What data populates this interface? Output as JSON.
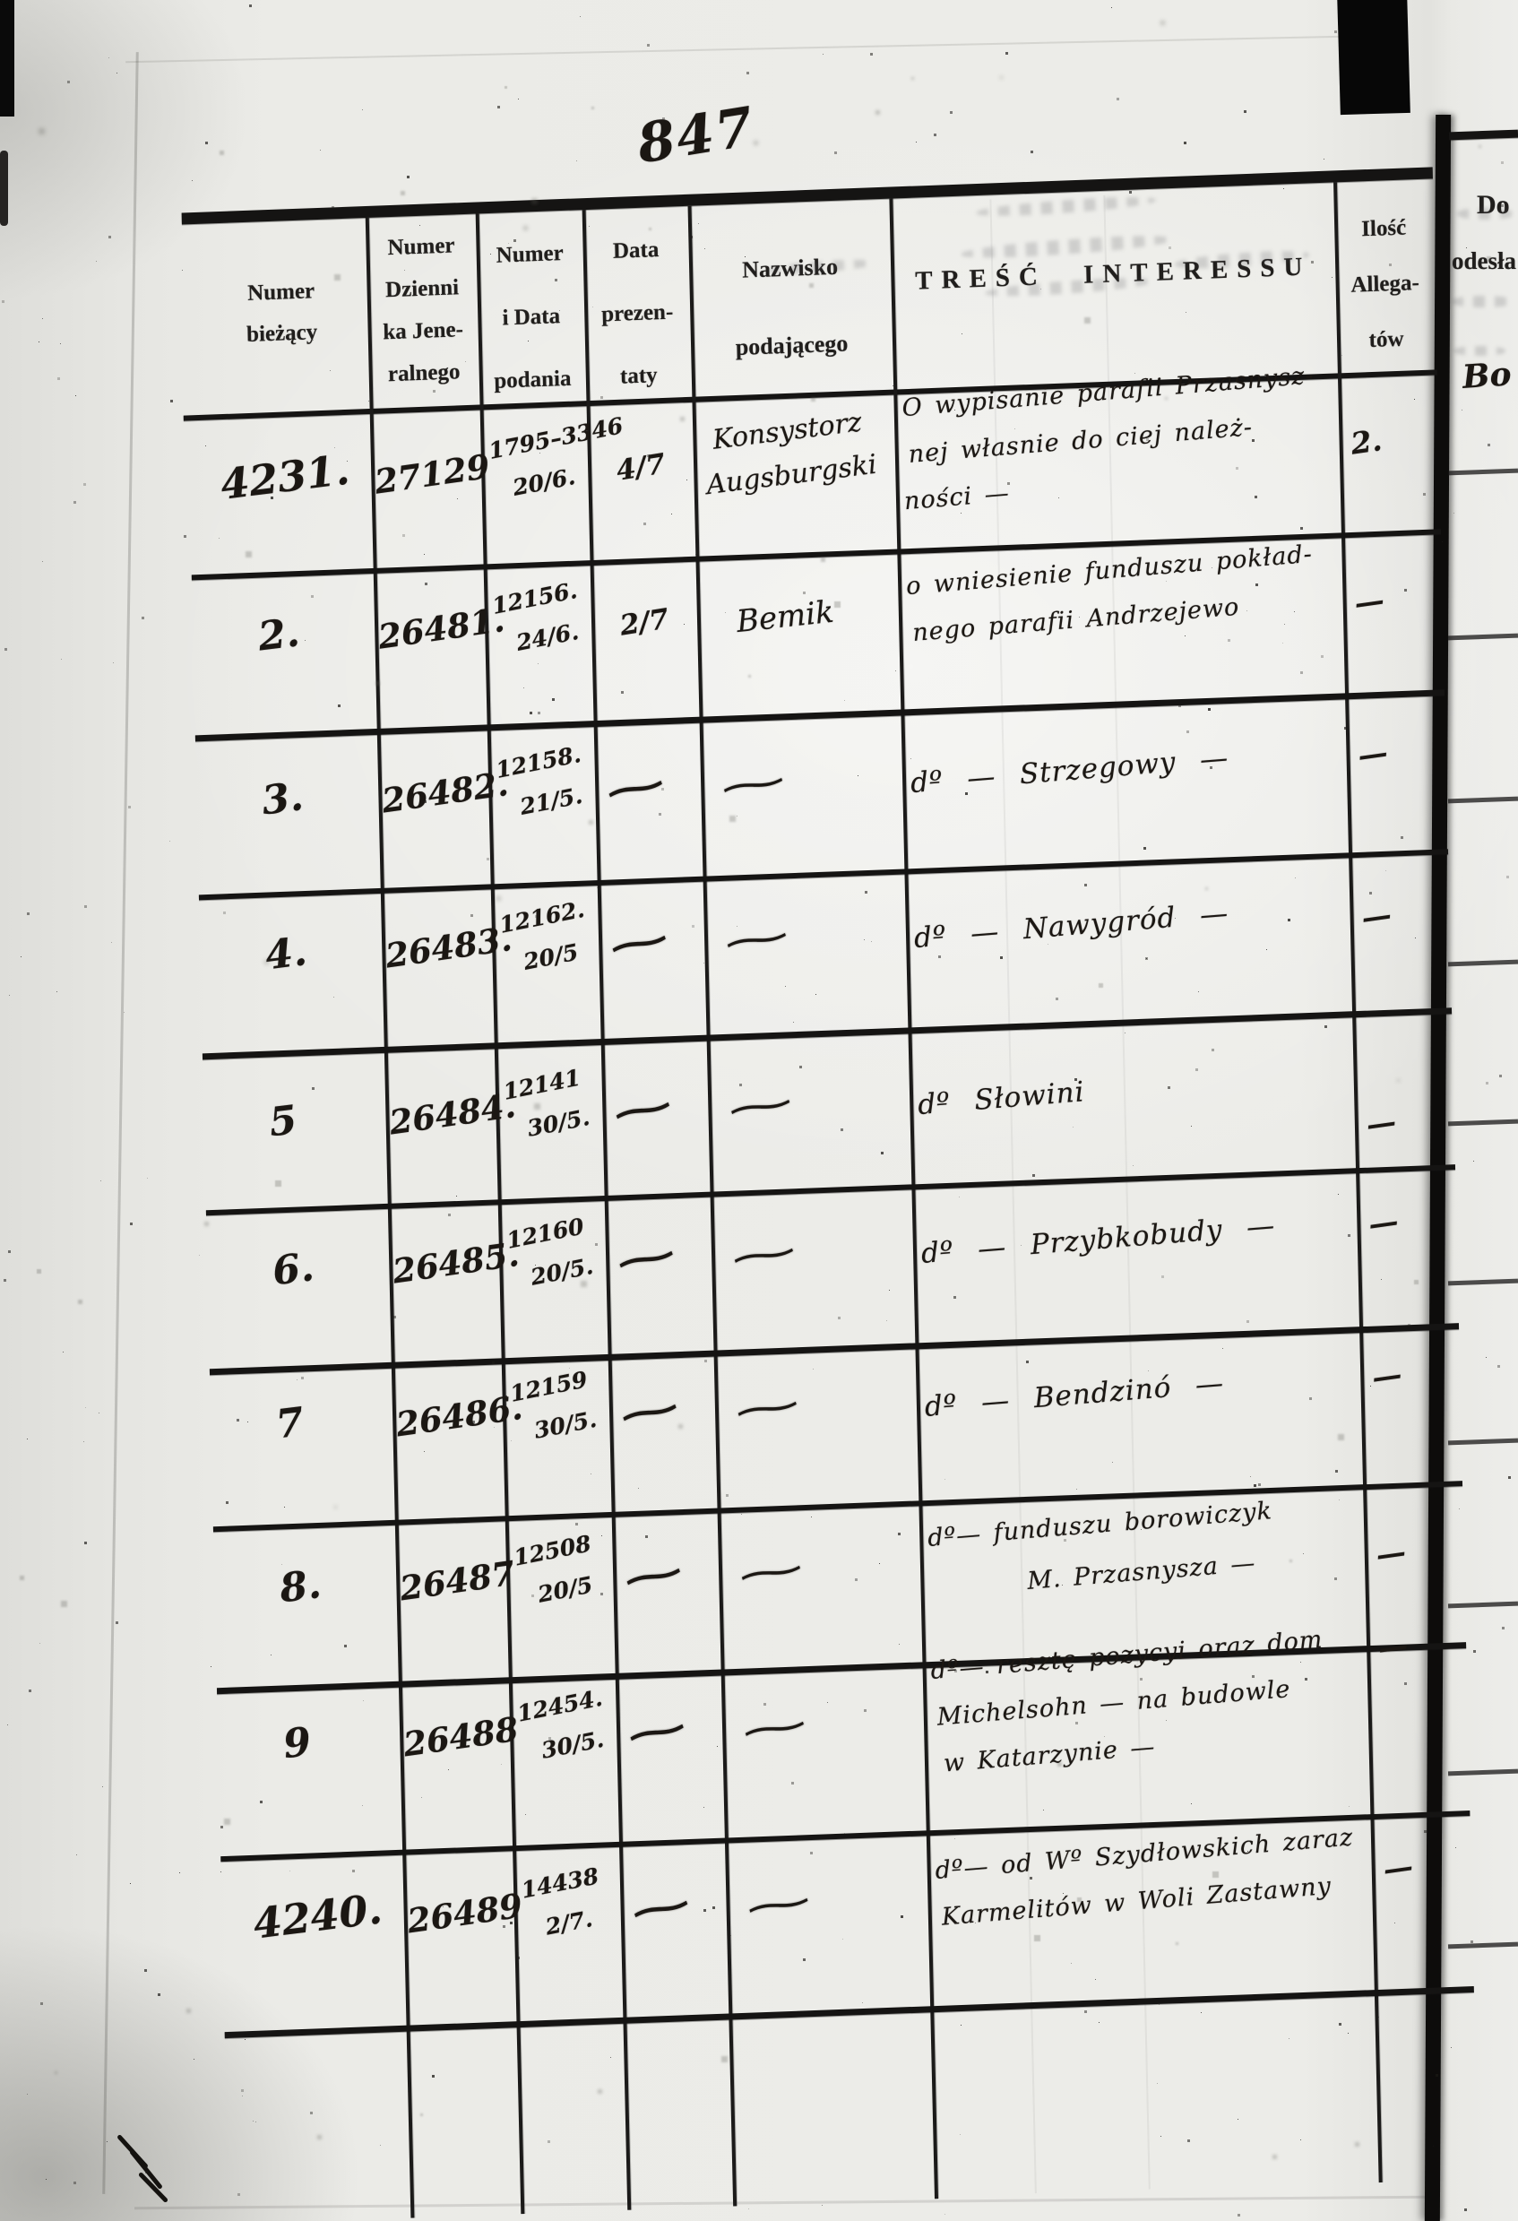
{
  "page": {
    "handwritten_page_number": "847",
    "paper_color": "#ecece8",
    "ink_color": "#1b1713",
    "print_color": "#201e1c"
  },
  "marks": {
    "ditto": "~",
    "dash": "—"
  },
  "table": {
    "columns": [
      {
        "id": "numer-biezacy",
        "label_lines": [
          "Numer",
          "bieżący"
        ]
      },
      {
        "id": "numer-dziennika",
        "label_lines": [
          "Numer",
          "Dzienni",
          "ka Jene-",
          "ralnego"
        ]
      },
      {
        "id": "numer-podania",
        "label_lines": [
          "Numer",
          "i Data",
          "podania"
        ]
      },
      {
        "id": "data-prezentaty",
        "label_lines": [
          "Data",
          "prezen-",
          "taty"
        ]
      },
      {
        "id": "nazwisko",
        "label_lines": [
          "Nazwisko",
          "podającego"
        ]
      },
      {
        "id": "tresc",
        "label_lines": [
          "TREŚĆ INTERESSU"
        ]
      },
      {
        "id": "ilosc",
        "label_lines": [
          "Ilość",
          "Allega-",
          "tów"
        ]
      }
    ],
    "rows": [
      {
        "numer_biezacy": "4231.",
        "numer_dziennika": "27129",
        "numer_podania": [
          "1795–3346",
          "20/6."
        ],
        "data_prezentaty": "4/7",
        "nazwisko": [
          "Konsystorz",
          "Augsburgski"
        ],
        "tresc": [
          "O wypisanie parafii Przasnysz-",
          "nej własnie do ciej należ-",
          "ności —"
        ],
        "ilosc": "2."
      },
      {
        "numer_biezacy": "2.",
        "numer_dziennika": "26481.",
        "numer_podania": [
          "12156.",
          "24/6."
        ],
        "data_prezentaty": "2/7",
        "nazwisko": [
          "Bemik"
        ],
        "tresc": [
          "o wniesienie funduszu pokład-",
          "nego parafii Andrzejewo"
        ],
        "ilosc": "—"
      },
      {
        "numer_biezacy": "3.",
        "numer_dziennika": "26482.",
        "numer_podania": [
          "12158.",
          "21/5."
        ],
        "data_prezentaty": "~",
        "nazwisko": [
          "~"
        ],
        "tresc": [
          "dº —   Strzegowy —"
        ],
        "ilosc": "—"
      },
      {
        "numer_biezacy": "4.",
        "numer_dziennika": "26483.",
        "numer_podania": [
          "12162.",
          "20/5"
        ],
        "data_prezentaty": "~",
        "nazwisko": [
          "~"
        ],
        "tresc": [
          "dº —   Nawygród   —"
        ],
        "ilosc": "—"
      },
      {
        "numer_biezacy": "5",
        "numer_dziennika": "26484.",
        "numer_podania": [
          "12141",
          "30/5."
        ],
        "data_prezentaty": "~",
        "nazwisko": [
          "~"
        ],
        "tresc": [
          "dº    Słowini"
        ],
        "ilosc": "—"
      },
      {
        "numer_biezacy": "6.",
        "numer_dziennika": "26485.",
        "numer_podania": [
          "12160",
          "20/5."
        ],
        "data_prezentaty": "~",
        "nazwisko": [
          "~"
        ],
        "tresc": [
          "dº —   Przybkobudy  —"
        ],
        "ilosc": "—"
      },
      {
        "numer_biezacy": "7",
        "numer_dziennika": "26486.",
        "numer_podania": [
          "12159",
          "30/5."
        ],
        "data_prezentaty": "~",
        "nazwisko": [
          "~"
        ],
        "tresc": [
          "dº —   Bendzinó —"
        ],
        "ilosc": "—"
      },
      {
        "numer_biezacy": "8.",
        "numer_dziennika": "26487",
        "numer_podania": [
          "12508",
          "20/5"
        ],
        "data_prezentaty": "~",
        "nazwisko": [
          "~"
        ],
        "tresc": [
          "dº—  funduszu borowiczyk",
          "M. Przasnysza —"
        ],
        "ilosc": "—"
      },
      {
        "numer_biezacy": "9",
        "numer_dziennika": "26488",
        "numer_podania": [
          "12454.",
          "30/5."
        ],
        "data_prezentaty": "~",
        "nazwisko": [
          "~"
        ],
        "tresc": [
          "dº— resztę pozycyi oraz dom",
          "Michelsohn — na budowle",
          "w Katarzynie —"
        ],
        "ilosc": "—"
      },
      {
        "numer_biezacy": "4240.",
        "numer_dziennika": "26489",
        "numer_podania": [
          "14438",
          "2/7."
        ],
        "data_prezentaty": "~",
        "nazwisko": [
          "~"
        ],
        "tresc": [
          "dº— od Wº Szydłowskich zaraz",
          "Karmelitów w Woli Zastawny"
        ],
        "ilosc": "—"
      }
    ]
  },
  "right_page": {
    "header_lines": [
      "Do",
      "odesła"
    ],
    "first_entry": "Bo"
  }
}
